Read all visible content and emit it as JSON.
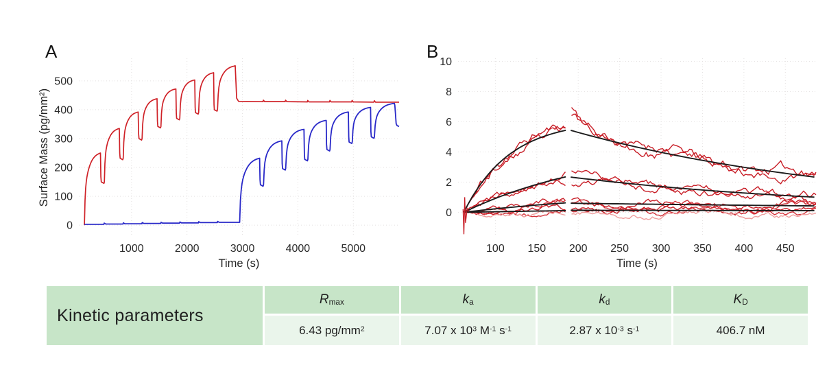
{
  "page": {
    "background": "#ffffff"
  },
  "figure": {
    "panel_a": {
      "label": "A"
    },
    "panel_b": {
      "label": "B"
    },
    "table": {
      "title": "Kinetic parameters",
      "header_bg": "#c7e5c8",
      "value_bg": "#eaf5eb",
      "text_color": "#1f1f1f",
      "columns": [
        {
          "symbol": [
            {
              "i": "R"
            },
            {
              "sub": "max"
            }
          ],
          "value": [
            {
              "t": "6.43 pg/mm"
            },
            {
              "sup": "2"
            }
          ]
        },
        {
          "symbol": [
            {
              "i": "k"
            },
            {
              "sub": "a"
            }
          ],
          "value": [
            {
              "t": "7.07 x 10"
            },
            {
              "sup": "3"
            },
            {
              "t": " M"
            },
            {
              "sup": "-1"
            },
            {
              "t": " s"
            },
            {
              "sup": "-1"
            }
          ]
        },
        {
          "symbol": [
            {
              "i": "k"
            },
            {
              "sub": "d"
            }
          ],
          "value": [
            {
              "t": "2.87 x 10"
            },
            {
              "sup": "-3"
            },
            {
              "t": " s"
            },
            {
              "sup": "-1"
            }
          ]
        },
        {
          "symbol": [
            {
              "i": "K"
            },
            {
              "sub": "D"
            }
          ],
          "value": [
            {
              "t": "406.7 nM"
            }
          ]
        }
      ]
    }
  },
  "chart_data": [
    {
      "type": "line",
      "panel": "A",
      "title": "",
      "xlabel": "Time (s)",
      "ylabel": "Surface Mass (pg/mm²)",
      "x_range": [
        50,
        5825
      ],
      "y_range": [
        -40,
        578
      ],
      "x_ticks": [
        1000,
        2000,
        3000,
        4000,
        5000
      ],
      "y_ticks": [
        0,
        100,
        200,
        300,
        400,
        500
      ],
      "grid": true,
      "legend": "none",
      "series": [
        {
          "name": "red-stepwise-titration",
          "color": "#cf2127",
          "width": 1.7,
          "cycles": [
            [
              150,
              440,
              0,
              250,
              150
            ],
            [
              510,
              780,
              150,
              335,
              232
            ],
            [
              850,
              1120,
              232,
              392,
              300
            ],
            [
              1190,
              1460,
              300,
              438,
              342
            ],
            [
              1530,
              1800,
              342,
              472,
              370
            ],
            [
              1870,
              2140,
              370,
              503,
              390
            ],
            [
              2210,
              2480,
              390,
              528,
              400
            ],
            [
              2550,
              2870,
              400,
              552,
              null
            ]
          ],
          "tail": [
            [
              2884,
              490
            ],
            [
              2896,
              440
            ],
            [
              2930,
              429
            ],
            [
              3370,
              428
            ],
            [
              3378,
              433
            ],
            [
              3400,
              428
            ],
            [
              3770,
              428
            ],
            [
              3778,
              433
            ],
            [
              3800,
              428
            ],
            [
              4170,
              427
            ],
            [
              4178,
              432
            ],
            [
              4200,
              427
            ],
            [
              4570,
              427
            ],
            [
              4578,
              432
            ],
            [
              4600,
              427
            ],
            [
              4970,
              427
            ],
            [
              4978,
              432
            ],
            [
              5000,
              427
            ],
            [
              5370,
              426
            ],
            [
              5378,
              431
            ],
            [
              5400,
              426
            ],
            [
              5825,
              426
            ]
          ]
        },
        {
          "name": "blue-stepwise-titration",
          "color": "#2828c8",
          "width": 1.8,
          "baseline": [
            [
              150,
              3
            ],
            [
              500,
              3
            ],
            [
              508,
              7
            ],
            [
              535,
              4
            ],
            [
              845,
              4
            ],
            [
              853,
              8
            ],
            [
              880,
              5
            ],
            [
              1185,
              5
            ],
            [
              1193,
              9
            ],
            [
              1220,
              6
            ],
            [
              1525,
              6
            ],
            [
              1533,
              10
            ],
            [
              1560,
              7
            ],
            [
              1865,
              7
            ],
            [
              1873,
              11
            ],
            [
              1900,
              8
            ],
            [
              2205,
              8
            ],
            [
              2213,
              12
            ],
            [
              2240,
              9
            ],
            [
              2545,
              9
            ],
            [
              2553,
              13
            ],
            [
              2580,
              10
            ],
            [
              2940,
              10
            ]
          ],
          "cycles": [
            [
              2950,
              3310,
              10,
              232,
              140
            ],
            [
              3380,
              3710,
              140,
              292,
              196
            ],
            [
              3780,
              4110,
              196,
              332,
              228
            ],
            [
              4180,
              4510,
              228,
              363,
              262
            ],
            [
              4580,
              4910,
              262,
              392,
              288
            ],
            [
              4980,
              5310,
              288,
              408,
              306
            ],
            [
              5380,
              5740,
              306,
              422,
              null
            ]
          ],
          "tail": [
            [
              5748,
              415
            ],
            [
              5758,
              390
            ],
            [
              5772,
              352
            ],
            [
              5788,
              345
            ],
            [
              5825,
              342
            ]
          ]
        }
      ]
    },
    {
      "type": "line",
      "panel": "B",
      "title": "",
      "xlabel": "Time (s)",
      "ylabel": "",
      "x_range": [
        55,
        487
      ],
      "y_range": [
        -1.62,
        10.2
      ],
      "x_ticks": [
        100,
        150,
        200,
        250,
        300,
        350,
        400,
        450
      ],
      "y_ticks": [
        0,
        2,
        4,
        6,
        8,
        10
      ],
      "grid": true,
      "legend": "none",
      "assoc_window": [
        62,
        185
      ],
      "dissoc_window": [
        192,
        487
      ],
      "fit_assoc_window": [
        62,
        187
      ],
      "fit_dissoc_window": [
        191,
        487
      ],
      "fit_color": "#1c1c1c",
      "fits": [
        {
          "name": "fit-high",
          "A": 6.1,
          "kobs": 0.018,
          "d0": 5.43,
          "kd": 0.00287
        },
        {
          "name": "fit-mid",
          "A": 4.5,
          "kobs": 0.006,
          "d0": 2.33,
          "kd": 0.00287
        },
        {
          "name": "fit-low",
          "A": 1.55,
          "kobs": 0.0042,
          "d0": 0.6,
          "kd": 0.0012
        },
        {
          "name": "fit-zero",
          "A": 0.5,
          "kobs": 0.002,
          "d0": 0.13,
          "kd": 0.0005
        }
      ],
      "traces": [
        {
          "fit": 0,
          "color": "#c81e27",
          "noise": 0.2,
          "seed": 11,
          "extra": 1.45,
          "tau": 28,
          "offset": 0.08
        },
        {
          "fit": 0,
          "color": "#c81e27",
          "noise": 0.2,
          "seed": 23,
          "extra": 0.75,
          "tau": 42,
          "offset": -0.1
        },
        {
          "fit": 1,
          "color": "#c81e27",
          "noise": 0.15,
          "seed": 37,
          "extra": 0.2,
          "tau": 55,
          "offset": 0.05
        },
        {
          "fit": 1,
          "color": "#c81e27",
          "noise": 0.15,
          "seed": 41,
          "extra": 0.05,
          "tau": 55,
          "offset": -0.08
        },
        {
          "fit": 2,
          "color": "#c81e27",
          "noise": 0.12,
          "seed": 53,
          "extra": 0,
          "tau": 50,
          "offset": 0.04
        },
        {
          "fit": 2,
          "color": "#d3323a",
          "noise": 0.12,
          "seed": 59,
          "extra": 0,
          "tau": 50,
          "offset": -0.05
        },
        {
          "fit": 3,
          "color": "#c81e27",
          "noise": 0.1,
          "seed": 67,
          "extra": 0,
          "tau": 50,
          "offset": 0.05
        },
        {
          "fit": 3,
          "color": "#d3323a",
          "noise": 0.1,
          "seed": 71,
          "extra": 0,
          "tau": 50,
          "offset": -0.06
        },
        {
          "fit": 3,
          "color": "#ef9d9d",
          "noise": 0.1,
          "seed": 79,
          "extra": 0,
          "tau": 50,
          "offset": -0.24
        }
      ],
      "spike": {
        "color": "#c81e27",
        "points": [
          [
            61,
            0.2
          ],
          [
            62,
            -1.45
          ],
          [
            63,
            1.0
          ],
          [
            64,
            -0.7
          ],
          [
            66,
            0.25
          ],
          [
            68,
            0.05
          ]
        ]
      }
    }
  ]
}
